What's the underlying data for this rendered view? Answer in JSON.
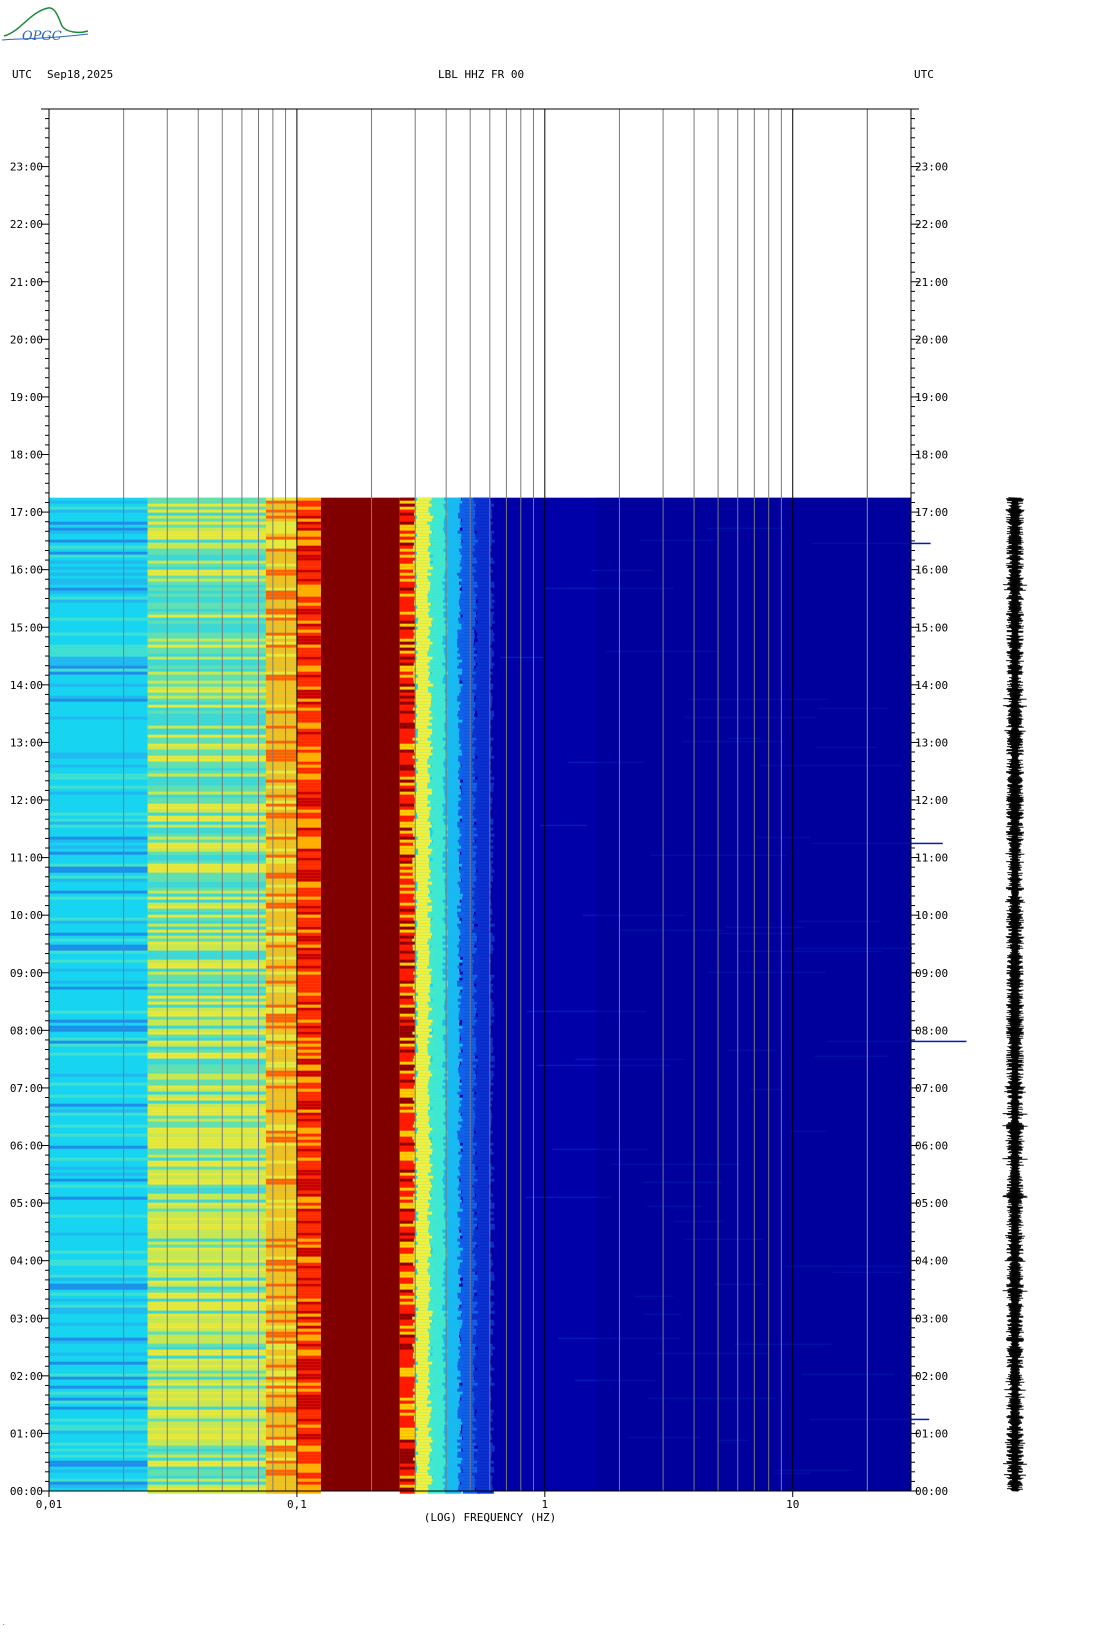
{
  "header": {
    "left_tz": "UTC",
    "date": "Sep18,2025",
    "station": "LBL HHZ FR 00",
    "right_tz": "UTC"
  },
  "logo": {
    "text": "OPGC"
  },
  "colors": {
    "grid_minor": "#7a7a7a",
    "grid_major": "#000000",
    "cyan": "#17d4f0",
    "yellow": "#e8e83a",
    "red": "#ff1a00",
    "dark_red": "#800000",
    "blue": "#0000a8",
    "deep_blue": "#000090"
  },
  "chart_data": {
    "type": "heatmap",
    "title": "LBL HHZ FR 00",
    "xlabel": "(LOG) FREQUENCY (HZ)",
    "x_scale": "log",
    "xlim": [
      0.01,
      30
    ],
    "x_ticks": [
      0.01,
      0.1,
      1,
      10
    ],
    "x_tick_labels": [
      "0,01",
      "0,1",
      "1",
      "10"
    ],
    "y_unit": "UTC hour",
    "ylim": [
      0,
      24
    ],
    "y_ticks": [
      0,
      1,
      2,
      3,
      4,
      5,
      6,
      7,
      8,
      9,
      10,
      11,
      12,
      13,
      14,
      15,
      16,
      17,
      18,
      19,
      20,
      21,
      22,
      23
    ],
    "y_tick_labels": [
      "00:00",
      "01:00",
      "02:00",
      "03:00",
      "04:00",
      "05:00",
      "06:00",
      "07:00",
      "08:00",
      "09:00",
      "10:00",
      "11:00",
      "12:00",
      "13:00",
      "14:00",
      "15:00",
      "16:00",
      "17:00",
      "18:00",
      "19:00",
      "20:00",
      "21:00",
      "22:00",
      "23:00"
    ],
    "data_end_hour": 17.25,
    "grid": true,
    "spectral_bands": [
      {
        "f_min": 0.01,
        "f_max": 0.025,
        "color": "cyan"
      },
      {
        "f_min": 0.025,
        "f_max": 0.075,
        "color": "cyan-yellow"
      },
      {
        "f_min": 0.075,
        "f_max": 0.1,
        "color": "yellow"
      },
      {
        "f_min": 0.1,
        "f_max": 0.125,
        "color": "yellow-red"
      },
      {
        "f_min": 0.125,
        "f_max": 0.26,
        "color": "dark_red"
      },
      {
        "f_min": 0.26,
        "f_max": 0.3,
        "color": "red"
      },
      {
        "f_min": 0.3,
        "f_max": 0.45,
        "color": "cyan"
      },
      {
        "f_min": 0.45,
        "f_max": 30,
        "color": "blue"
      }
    ],
    "trace": {
      "type": "waveform",
      "hours": [
        0,
        17.25
      ]
    }
  }
}
